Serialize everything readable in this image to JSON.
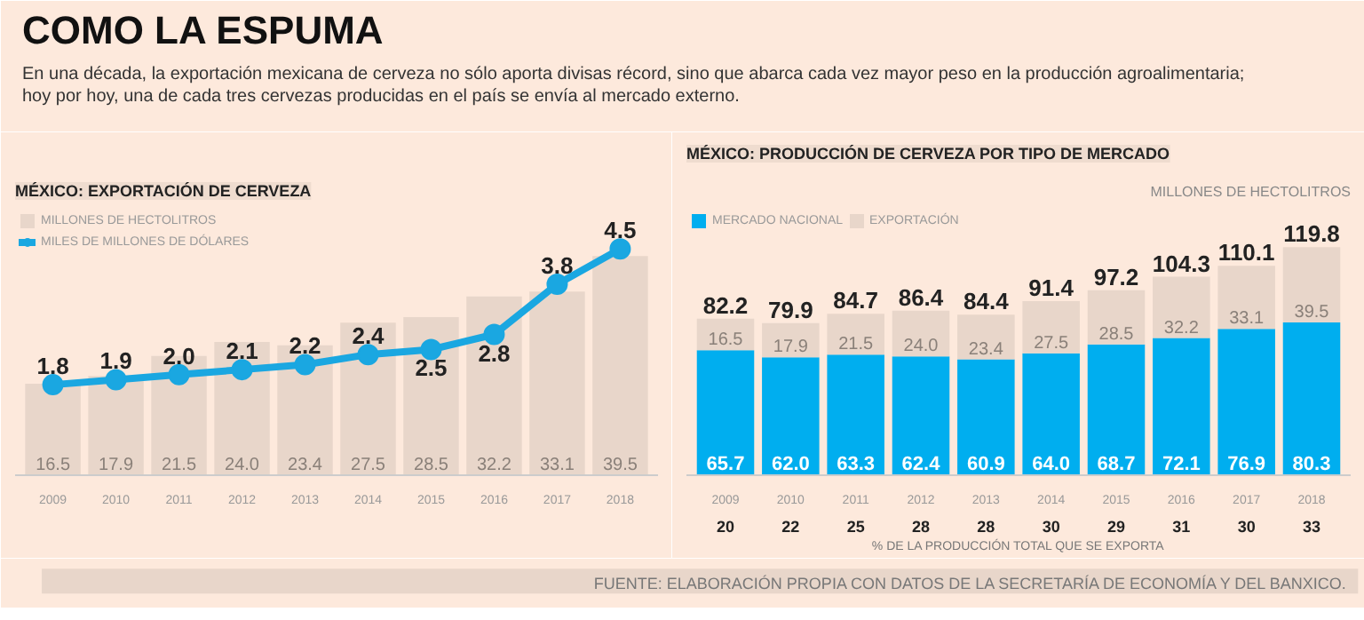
{
  "chart_data": [
    {
      "type": "other",
      "title": "COMO LA ESPUMA",
      "subtitle": "En una década, la exportación mexicana de cerveza no sólo aporta divisas récord, sino que abarca cada vez mayor peso en la producción agroalimentaria; hoy por hoy, una de cada tres cervezas producidas en el país se envía al mercado externo.",
      "annotations": [
        "FUENTE: ELABORACIÓN PROPIA CON DATOS DE LA SECRETARÍA DE ECONOMÍA Y DEL BANXICO."
      ]
    },
    {
      "type": "bar",
      "title": "MÉXICO: EXPORTACIÓN DE CERVEZA",
      "categories": [
        "2009",
        "2010",
        "2011",
        "2012",
        "2013",
        "2014",
        "2015",
        "2016",
        "2017",
        "2018"
      ],
      "series": [
        {
          "name": "MILLONES DE HECTOLITROS",
          "type": "bar",
          "color": "#e8d6ca",
          "values": [
            16.5,
            17.9,
            21.5,
            24.0,
            23.4,
            27.5,
            28.5,
            32.2,
            33.1,
            39.5
          ],
          "value_labels": [
            "16.5",
            "17.9",
            "21.5",
            "24.0",
            "23.4",
            "27.5",
            "28.5",
            "32.2",
            "33.1",
            "39.5"
          ]
        },
        {
          "name": "MILES DE MILLONES DE DÓLARES",
          "type": "line",
          "axis": "y2",
          "color": "#1aa7e1",
          "values": [
            1.8,
            1.9,
            2.0,
            2.1,
            2.2,
            2.4,
            2.5,
            2.8,
            3.8,
            4.5
          ],
          "value_labels": [
            "1.8",
            "1.9",
            "2.0",
            "2.1",
            "2.2",
            "2.4",
            "2.5",
            "2.8",
            "3.8",
            "4.5"
          ]
        }
      ],
      "ylim": [
        0,
        48
      ],
      "y2lim": [
        0,
        5.3
      ],
      "tick_labels": "x",
      "legend": "top left",
      "marker": "circle",
      "line_style": "solid"
    },
    {
      "type": "bar",
      "stacked": true,
      "title": "MÉXICO: PRODUCCIÓN DE CERVEZA POR TIPO DE MERCADO",
      "subtitle": "MILLONES DE HECTOLITROS",
      "categories": [
        "2009",
        "2010",
        "2011",
        "2012",
        "2013",
        "2014",
        "2015",
        "2016",
        "2017",
        "2018"
      ],
      "series": [
        {
          "name": "MERCADO NACIONAL",
          "color": "#00aeef",
          "values": [
            65.7,
            62.0,
            63.3,
            62.4,
            60.9,
            64.0,
            68.7,
            72.1,
            76.9,
            80.3
          ],
          "value_labels": [
            "65.7",
            "62.0",
            "63.3",
            "62.4",
            "60.9",
            "64.0",
            "68.7",
            "72.1",
            "76.9",
            "80.3"
          ]
        },
        {
          "name": "EXPORTACIÓN",
          "color": "#e8d6ca",
          "values": [
            16.5,
            17.9,
            21.5,
            24.0,
            23.4,
            27.5,
            28.5,
            32.2,
            33.1,
            39.5
          ],
          "value_labels": [
            "16.5",
            "17.9",
            "21.5",
            "24.0",
            "23.4",
            "27.5",
            "28.5",
            "32.2",
            "33.1",
            "39.5"
          ]
        }
      ],
      "totals": [
        "82.2",
        "79.9",
        "84.7",
        "86.4",
        "84.4",
        "91.4",
        "97.2",
        "104.3",
        "110.1",
        "119.8"
      ],
      "ylim": [
        0,
        140
      ],
      "tick_labels": "x",
      "legend": "top left",
      "annotations": [
        "20",
        "22",
        "25",
        "28",
        "28",
        "30",
        "29",
        "31",
        "30",
        "33",
        "% DE LA PRODUCCIÓN TOTAL QUE SE EXPORTA"
      ]
    }
  ]
}
